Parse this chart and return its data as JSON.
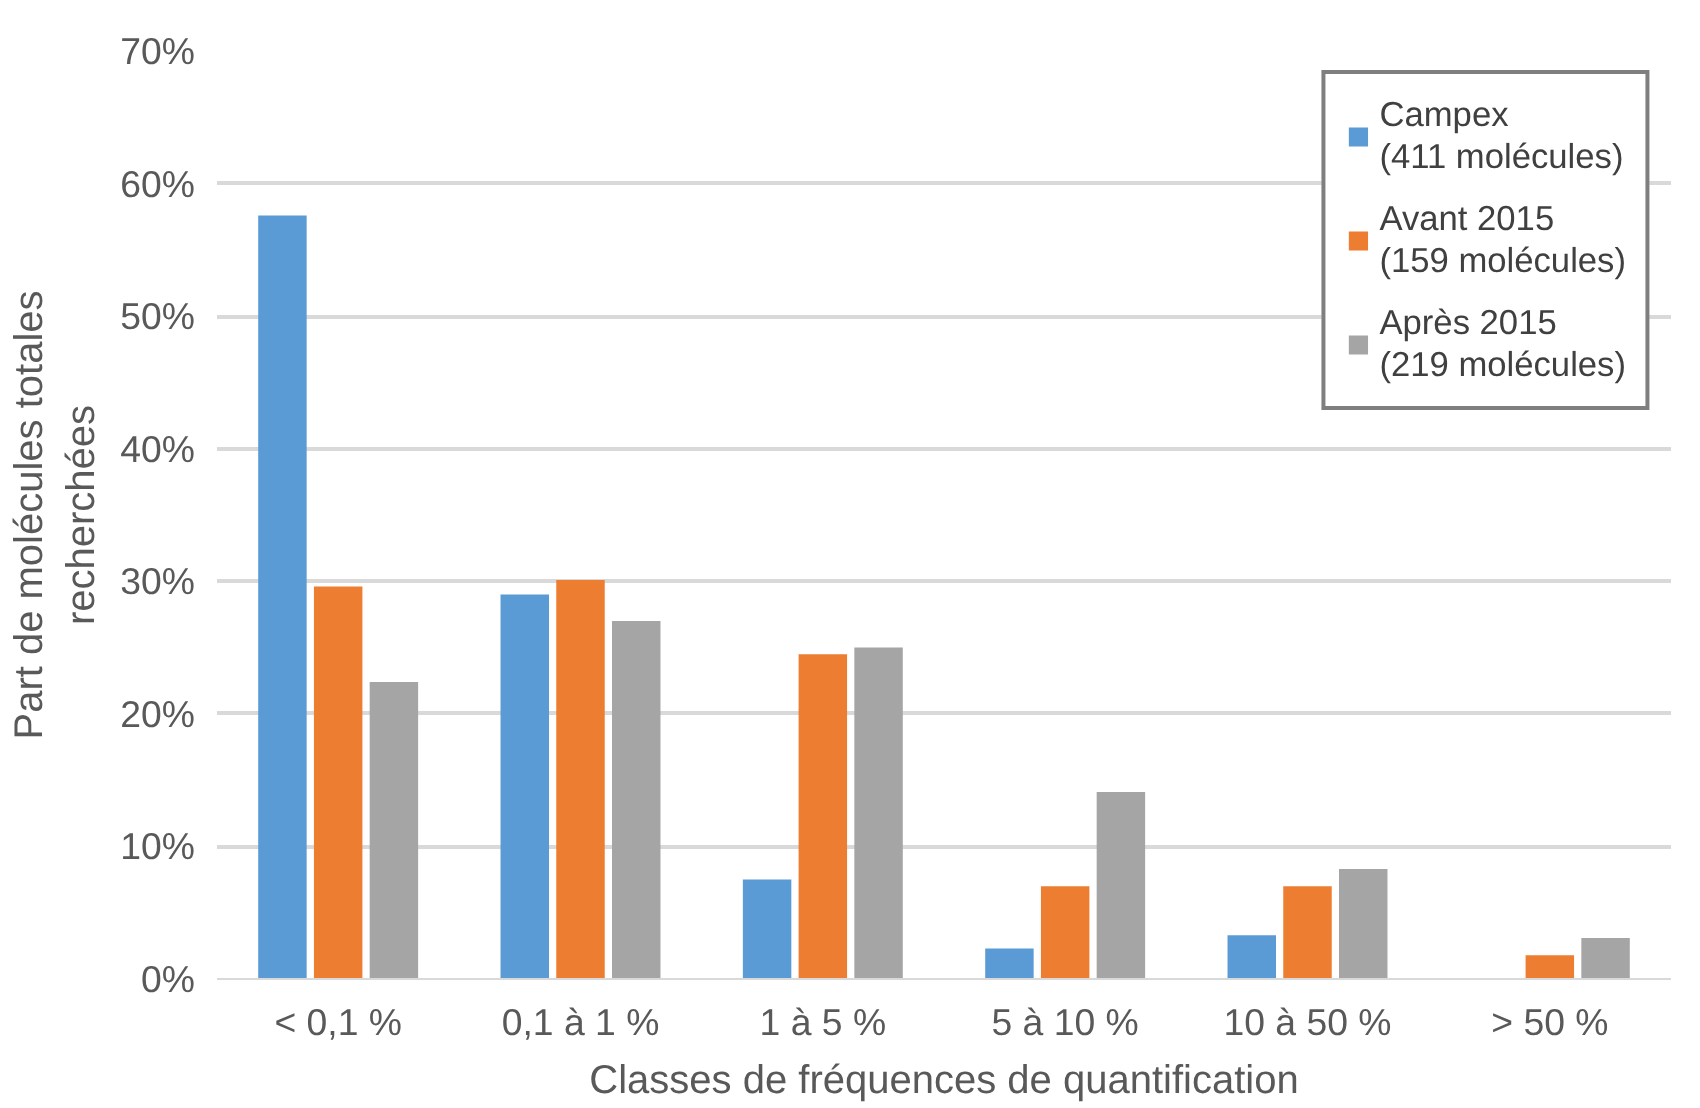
{
  "chart_data": {
    "type": "bar",
    "xlabel": "Classes de fréquences de quantification",
    "ylabel": "Part de molécules totales\nrecherchées",
    "categories": [
      "< 0,1 %",
      "0,1 à 1 %",
      "1 à 5 %",
      "5 à 10 %",
      "10 à 50 %",
      "> 50 %"
    ],
    "series": [
      {
        "name": "Campex\n(411 molécules)",
        "color": "#5b9bd5",
        "values": [
          57.6,
          29.0,
          7.5,
          2.3,
          3.3,
          0
        ]
      },
      {
        "name": "Avant 2015\n(159 molécules)",
        "color": "#ed7d31",
        "values": [
          29.6,
          30.1,
          24.5,
          7.0,
          7.0,
          1.8
        ]
      },
      {
        "name": "Après 2015\n(219 molécules)",
        "color": "#a5a5a5",
        "values": [
          22.4,
          27.0,
          25.0,
          14.1,
          8.3,
          3.1
        ]
      }
    ],
    "ylim": [
      0,
      70
    ],
    "yticks": [
      {
        "value": 0,
        "label": "0%"
      },
      {
        "value": 10,
        "label": "10%"
      },
      {
        "value": 20,
        "label": "20%"
      },
      {
        "value": 30,
        "label": "30%"
      },
      {
        "value": 40,
        "label": "40%"
      },
      {
        "value": 50,
        "label": "50%"
      },
      {
        "value": 60,
        "label": "60%"
      },
      {
        "value": 70,
        "label": "70%"
      }
    ],
    "grid": "y",
    "legend": "top right"
  }
}
